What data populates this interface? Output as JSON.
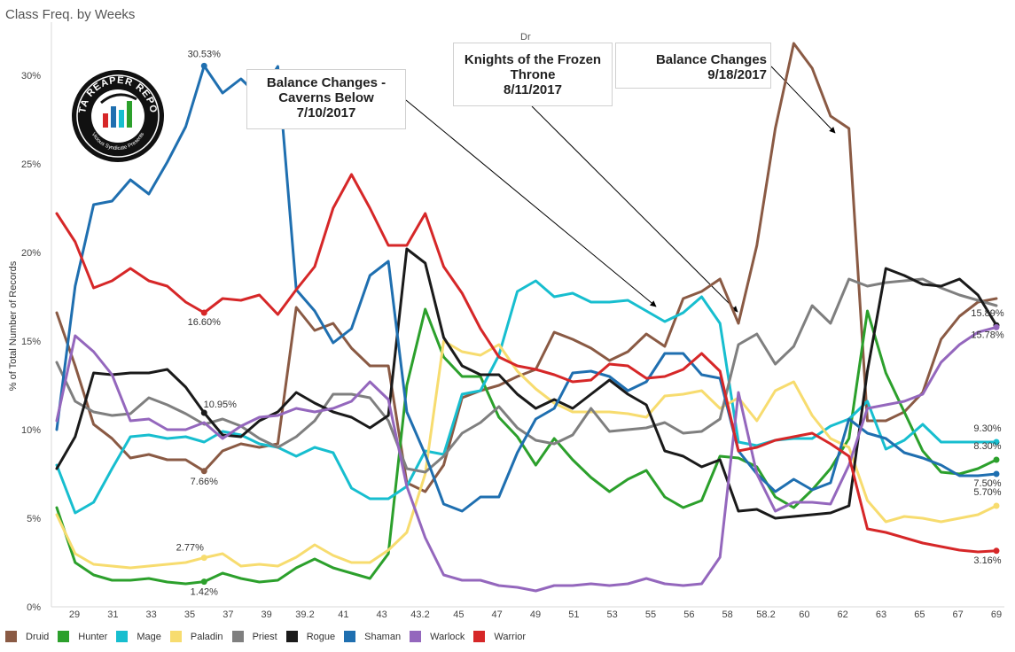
{
  "page": {
    "title": "Class Freq. by Weeks",
    "subtitle": "Dr",
    "logo": {
      "text": "DATA REAPER REPORT",
      "subtext": "Vicious Syndicate Presents"
    }
  },
  "annotations": [
    {
      "lines": [
        "Balance Changes -",
        "Caverns Below",
        "7/10/2017"
      ]
    },
    {
      "lines": [
        "Knights of the Frozen",
        "Throne",
        "8/11/2017"
      ]
    },
    {
      "lines": [
        "Balance Changes",
        "9/18/2017"
      ]
    }
  ],
  "chart_data": {
    "type": "line",
    "ylabel": "% of Total Number of Records",
    "xlabel": "",
    "ylim": [
      0,
      33
    ],
    "yticks": [
      "0%",
      "5%",
      "10%",
      "15%",
      "20%",
      "25%",
      "30%"
    ],
    "xtick_labels": [
      "29",
      "31",
      "33",
      "35",
      "37",
      "39",
      "39.2",
      "41",
      "43",
      "43.2",
      "45",
      "47",
      "49",
      "51",
      "53",
      "55",
      "56",
      "58",
      "58.2",
      "60",
      "62",
      "63",
      "65",
      "67",
      "69"
    ],
    "legend_position": "bottom",
    "series": [
      {
        "name": "Druid",
        "color": "#8a5a44",
        "values": [
          16.6,
          13.6,
          10.3,
          9.5,
          8.4,
          8.6,
          8.3,
          8.3,
          7.66,
          8.8,
          9.2,
          9.0,
          9.2,
          16.9,
          15.6,
          16.0,
          14.6,
          13.6,
          13.6,
          7.0,
          6.5,
          8.0,
          11.8,
          12.2,
          12.5,
          13.0,
          13.4,
          15.5,
          15.1,
          14.6,
          13.9,
          14.4,
          15.4,
          14.7,
          17.4,
          17.8,
          18.5,
          16.0,
          20.4,
          27.0,
          31.8,
          30.4,
          27.7,
          27.0,
          10.5,
          10.5,
          11.0,
          12.1,
          15.1,
          16.4,
          17.2,
          17.4
        ]
      },
      {
        "name": "Hunter",
        "color": "#2ca02c",
        "values": [
          5.6,
          2.5,
          1.8,
          1.5,
          1.5,
          1.6,
          1.4,
          1.3,
          1.42,
          1.9,
          1.6,
          1.4,
          1.5,
          2.2,
          2.7,
          2.2,
          1.9,
          1.6,
          3.0,
          12.5,
          16.8,
          14.1,
          13.0,
          13.0,
          10.7,
          9.6,
          8.0,
          9.5,
          8.3,
          7.3,
          6.5,
          7.2,
          7.7,
          6.2,
          5.6,
          6.0,
          8.5,
          8.4,
          7.9,
          6.2,
          5.6,
          6.6,
          7.8,
          9.5,
          16.7,
          13.2,
          11.0,
          8.8,
          7.6,
          7.5,
          7.8,
          8.3
        ]
      },
      {
        "name": "Mage",
        "color": "#17becf",
        "values": [
          8.0,
          5.3,
          5.9,
          7.8,
          9.6,
          9.7,
          9.5,
          9.6,
          9.3,
          9.9,
          9.7,
          9.2,
          9.0,
          8.5,
          9.0,
          8.7,
          6.7,
          6.1,
          6.1,
          6.8,
          8.8,
          8.6,
          12.0,
          12.2,
          14.2,
          17.8,
          18.4,
          17.5,
          17.7,
          17.2,
          17.2,
          17.3,
          16.7,
          16.1,
          16.6,
          17.5,
          16.0,
          9.3,
          9.1,
          9.4,
          9.5,
          9.5,
          10.2,
          10.6,
          11.6,
          8.9,
          9.4,
          10.3,
          9.3,
          9.3,
          9.3,
          9.3
        ]
      },
      {
        "name": "Paladin",
        "color": "#f7dc6f",
        "values": [
          5.2,
          3.0,
          2.4,
          2.3,
          2.2,
          2.3,
          2.4,
          2.5,
          2.77,
          3.0,
          2.3,
          2.4,
          2.3,
          2.8,
          3.5,
          2.9,
          2.5,
          2.5,
          3.2,
          4.2,
          7.5,
          15.0,
          14.4,
          14.2,
          14.8,
          13.3,
          12.3,
          11.5,
          11.0,
          11.0,
          11.0,
          10.9,
          10.7,
          11.9,
          12.0,
          12.2,
          11.2,
          11.8,
          10.5,
          12.2,
          12.7,
          10.8,
          9.5,
          9.0,
          6.0,
          4.8,
          5.1,
          5.0,
          4.8,
          5.0,
          5.2,
          5.7
        ]
      },
      {
        "name": "Priest",
        "color": "#7f7f7f",
        "values": [
          13.8,
          11.6,
          11.0,
          10.8,
          10.9,
          11.8,
          11.4,
          10.9,
          10.3,
          10.6,
          10.2,
          9.5,
          9.0,
          9.6,
          10.5,
          12.0,
          12.0,
          11.8,
          10.5,
          7.8,
          7.6,
          8.5,
          9.8,
          10.4,
          11.3,
          10.1,
          9.4,
          9.2,
          9.7,
          11.2,
          9.9,
          10.0,
          10.1,
          10.4,
          9.8,
          9.9,
          10.6,
          14.8,
          15.4,
          13.7,
          14.7,
          17.0,
          16.0,
          18.5,
          18.1,
          18.3,
          18.4,
          18.5,
          18.0,
          17.6,
          17.3,
          17.0
        ]
      },
      {
        "name": "Rogue",
        "color": "#1a1a1a",
        "values": [
          7.8,
          9.6,
          13.2,
          13.1,
          13.2,
          13.2,
          13.4,
          12.4,
          10.95,
          9.7,
          9.6,
          10.5,
          11.0,
          12.1,
          11.5,
          11.0,
          10.7,
          10.1,
          10.8,
          20.2,
          19.4,
          15.2,
          13.6,
          13.1,
          13.1,
          12.0,
          11.2,
          11.7,
          11.2,
          12.0,
          12.8,
          12.0,
          11.4,
          8.8,
          8.5,
          7.9,
          8.3,
          5.4,
          5.5,
          5.0,
          5.1,
          5.2,
          5.3,
          5.7,
          13.3,
          19.1,
          18.7,
          18.2,
          18.1,
          18.5,
          17.6,
          15.89
        ]
      },
      {
        "name": "Shaman",
        "color": "#1f6fb0",
        "values": [
          10.0,
          18.1,
          22.7,
          22.9,
          24.1,
          23.3,
          25.1,
          27.1,
          30.53,
          29.0,
          29.8,
          28.8,
          30.5,
          17.9,
          16.7,
          14.9,
          15.7,
          18.7,
          19.5,
          11.0,
          8.6,
          5.8,
          5.4,
          6.2,
          6.2,
          8.7,
          10.6,
          11.2,
          13.2,
          13.3,
          13.0,
          12.2,
          12.7,
          14.3,
          14.3,
          13.1,
          12.9,
          8.8,
          7.5,
          6.5,
          7.2,
          6.6,
          7.0,
          10.6,
          9.8,
          9.5,
          8.7,
          8.4,
          8.0,
          7.4,
          7.4,
          7.5
        ]
      },
      {
        "name": "Warlock",
        "color": "#9467bd",
        "values": [
          10.5,
          15.3,
          14.4,
          13.1,
          10.5,
          10.6,
          10.0,
          10.0,
          10.4,
          9.5,
          10.2,
          10.7,
          10.8,
          11.2,
          11.0,
          11.2,
          11.6,
          12.7,
          11.7,
          6.8,
          3.9,
          1.8,
          1.5,
          1.5,
          1.2,
          1.1,
          0.9,
          1.2,
          1.2,
          1.3,
          1.2,
          1.3,
          1.6,
          1.3,
          1.2,
          1.3,
          2.8,
          12.1,
          7.5,
          5.4,
          5.9,
          5.9,
          5.8,
          8.0,
          11.2,
          11.4,
          11.6,
          12.0,
          13.8,
          14.8,
          15.5,
          15.78
        ]
      },
      {
        "name": "Warrior",
        "color": "#d62728",
        "values": [
          22.2,
          20.6,
          18.0,
          18.4,
          19.1,
          18.4,
          18.1,
          17.2,
          16.6,
          17.4,
          17.3,
          17.6,
          16.5,
          17.9,
          19.2,
          22.5,
          24.4,
          22.5,
          20.4,
          20.4,
          22.2,
          19.2,
          17.7,
          15.7,
          14.1,
          13.6,
          13.4,
          13.1,
          12.7,
          12.8,
          13.7,
          13.6,
          12.9,
          13.0,
          13.4,
          14.3,
          13.3,
          8.8,
          9.0,
          9.4,
          9.6,
          9.8,
          9.2,
          8.5,
          4.4,
          4.2,
          3.9,
          3.6,
          3.4,
          3.2,
          3.1,
          3.16
        ]
      }
    ],
    "data_labels": [
      {
        "series": "Shaman",
        "text": "30.53%"
      },
      {
        "series": "Warrior",
        "text": "16.60%"
      },
      {
        "series": "Rogue",
        "text": "10.95%"
      },
      {
        "series": "Druid",
        "text": "7.66%"
      },
      {
        "series": "Paladin",
        "text": "2.77%"
      },
      {
        "series": "Hunter",
        "text": "1.42%"
      },
      {
        "series": "Rogue",
        "text": "15.89%"
      },
      {
        "series": "Warlock",
        "text": "15.78%"
      },
      {
        "series": "Mage",
        "text": "9.30%"
      },
      {
        "series": "Hunter",
        "text": "8.30%"
      },
      {
        "series": "Shaman",
        "text": "7.50%"
      },
      {
        "series": "Paladin",
        "text": "5.70%"
      },
      {
        "series": "Warrior",
        "text": "3.16%"
      }
    ]
  }
}
